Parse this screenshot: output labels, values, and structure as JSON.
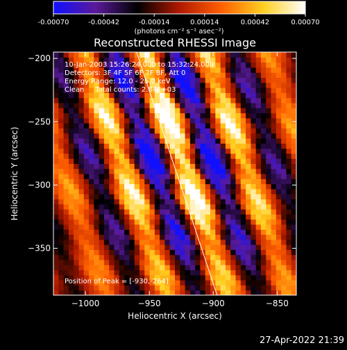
{
  "colorbar": {
    "ticks": [
      "-0.00070",
      "-0.00042",
      "-0.00014",
      "0.00014",
      "0.00042",
      "0.00070"
    ],
    "unit_label": "(photons cm⁻² s⁻¹ asec⁻²)",
    "colors": [
      "#1010ff",
      "#5a1a9a",
      "#000000",
      "#b01800",
      "#ff6000",
      "#ffd020",
      "#ffffff"
    ]
  },
  "chart_data": {
    "type": "heatmap",
    "title": "Reconstructed RHESSI Image",
    "xlabel": "Heliocentric X (arcsec)",
    "ylabel": "Heliocentric Y (arcsec)",
    "xlim": [
      -1025,
      -835
    ],
    "ylim": [
      -387,
      -195
    ],
    "xticks": [
      -1000,
      -950,
      -900,
      -850
    ],
    "yticks": [
      -350,
      -300,
      -250,
      -200
    ],
    "xtick_labels": [
      "−1000",
      "−950",
      "−900",
      "−850"
    ],
    "ytick_labels": [
      "−350",
      "−300",
      "−250",
      "−200"
    ],
    "color_range": [
      -0.0007,
      0.0007
    ],
    "annotations": [
      "10-Jan-2003 15:26:24.000 to 15:32:24.000",
      "Detectors: 3F 4F 5F 6F 7F 8F, Att 0",
      "Energy Range: 12.0 - 25.0 keV",
      "Clean     Total counts: 2.84E+03"
    ],
    "peak_label": "Position of Peak = [-930,-264]",
    "peak": [
      -930,
      -264
    ],
    "limb_line": [
      [
        -960,
        -195
      ],
      [
        -897,
        -387
      ]
    ]
  },
  "timestamp": "27-Apr-2022 21:39"
}
